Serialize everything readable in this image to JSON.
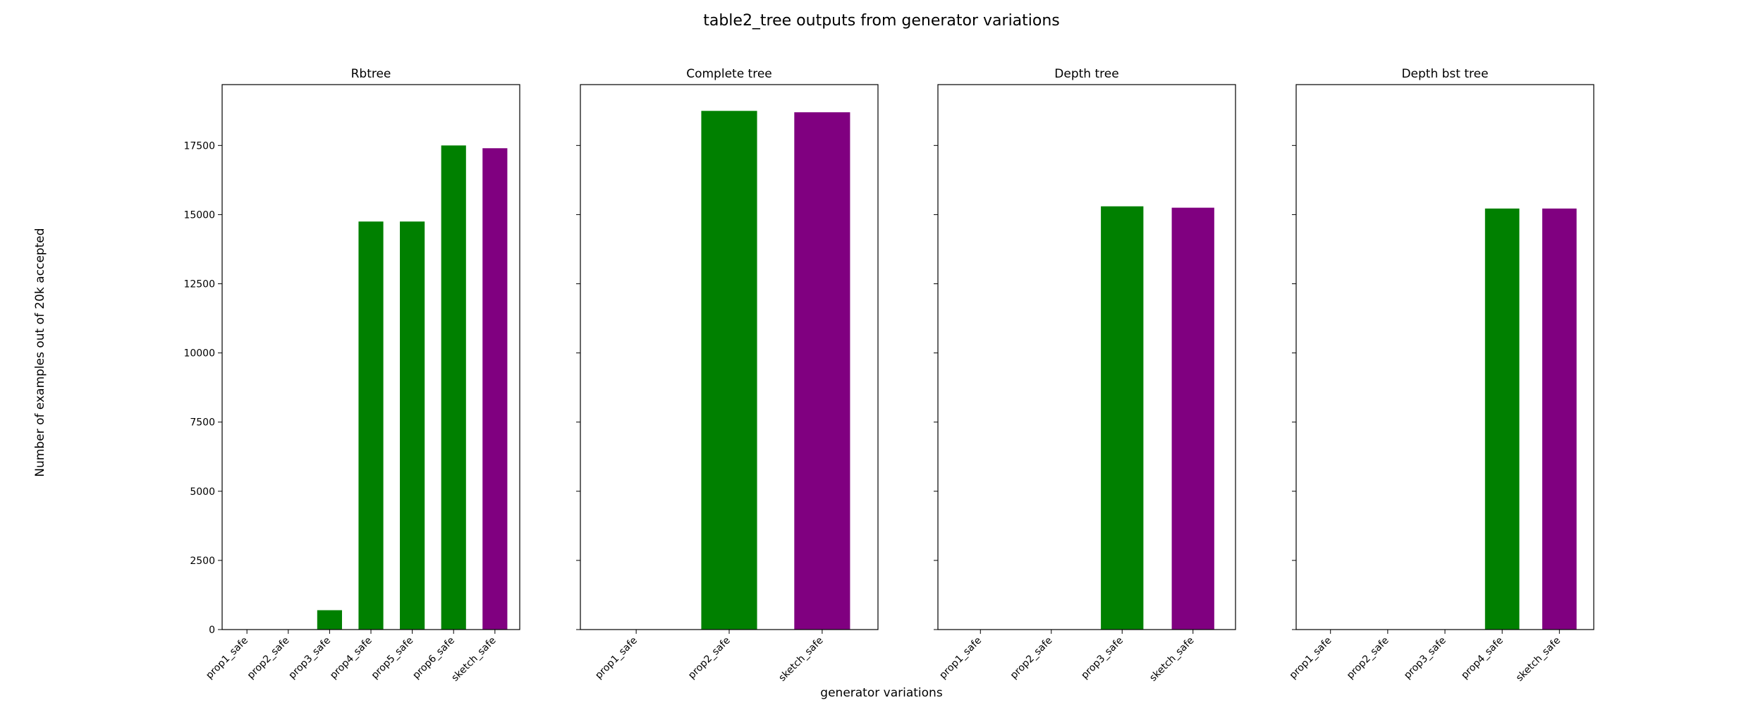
{
  "figure": {
    "title": "table2_tree outputs from generator variations",
    "xlabel": "generator variations",
    "ylabel": "Number of examples out of 20k accepted"
  },
  "chart_data": [
    {
      "type": "bar",
      "title": "Rbtree",
      "categories": [
        "prop1_safe",
        "prop2_safe",
        "prop3_safe",
        "prop4_safe",
        "prop5_safe",
        "prop6_safe",
        "sketch_safe"
      ],
      "values": [
        0,
        0,
        700,
        14750,
        14750,
        17500,
        17400
      ],
      "colors": [
        "#008000",
        "#008000",
        "#008000",
        "#008000",
        "#008000",
        "#008000",
        "#800080"
      ],
      "ylim": [
        0,
        19700
      ],
      "yticks": [
        0,
        2500,
        5000,
        7500,
        10000,
        12500,
        15000,
        17500
      ],
      "yticklabels": [
        "0",
        "2500",
        "5000",
        "7500",
        "10000",
        "12500",
        "15000",
        "17500"
      ]
    },
    {
      "type": "bar",
      "title": "Complete tree",
      "categories": [
        "prop1_safe",
        "prop2_safe",
        "sketch_safe"
      ],
      "values": [
        0,
        18750,
        18700
      ],
      "colors": [
        "#008000",
        "#008000",
        "#800080"
      ],
      "ylim": [
        0,
        19700
      ],
      "yticks": [
        0,
        2500,
        5000,
        7500,
        10000,
        12500,
        15000,
        17500
      ]
    },
    {
      "type": "bar",
      "title": "Depth tree",
      "categories": [
        "prop1_safe",
        "prop2_safe",
        "prop3_safe",
        "sketch_safe"
      ],
      "values": [
        0,
        0,
        15300,
        15250
      ],
      "colors": [
        "#008000",
        "#008000",
        "#008000",
        "#800080"
      ],
      "ylim": [
        0,
        19700
      ],
      "yticks": [
        0,
        2500,
        5000,
        7500,
        10000,
        12500,
        15000,
        17500
      ]
    },
    {
      "type": "bar",
      "title": "Depth bst tree",
      "categories": [
        "prop1_safe",
        "prop2_safe",
        "prop3_safe",
        "prop4_safe",
        "sketch_safe"
      ],
      "values": [
        0,
        0,
        0,
        15220,
        15220
      ],
      "colors": [
        "#008000",
        "#008000",
        "#008000",
        "#008000",
        "#800080"
      ],
      "ylim": [
        0,
        19700
      ],
      "yticks": [
        0,
        2500,
        5000,
        7500,
        10000,
        12500,
        15000,
        17500
      ]
    }
  ]
}
